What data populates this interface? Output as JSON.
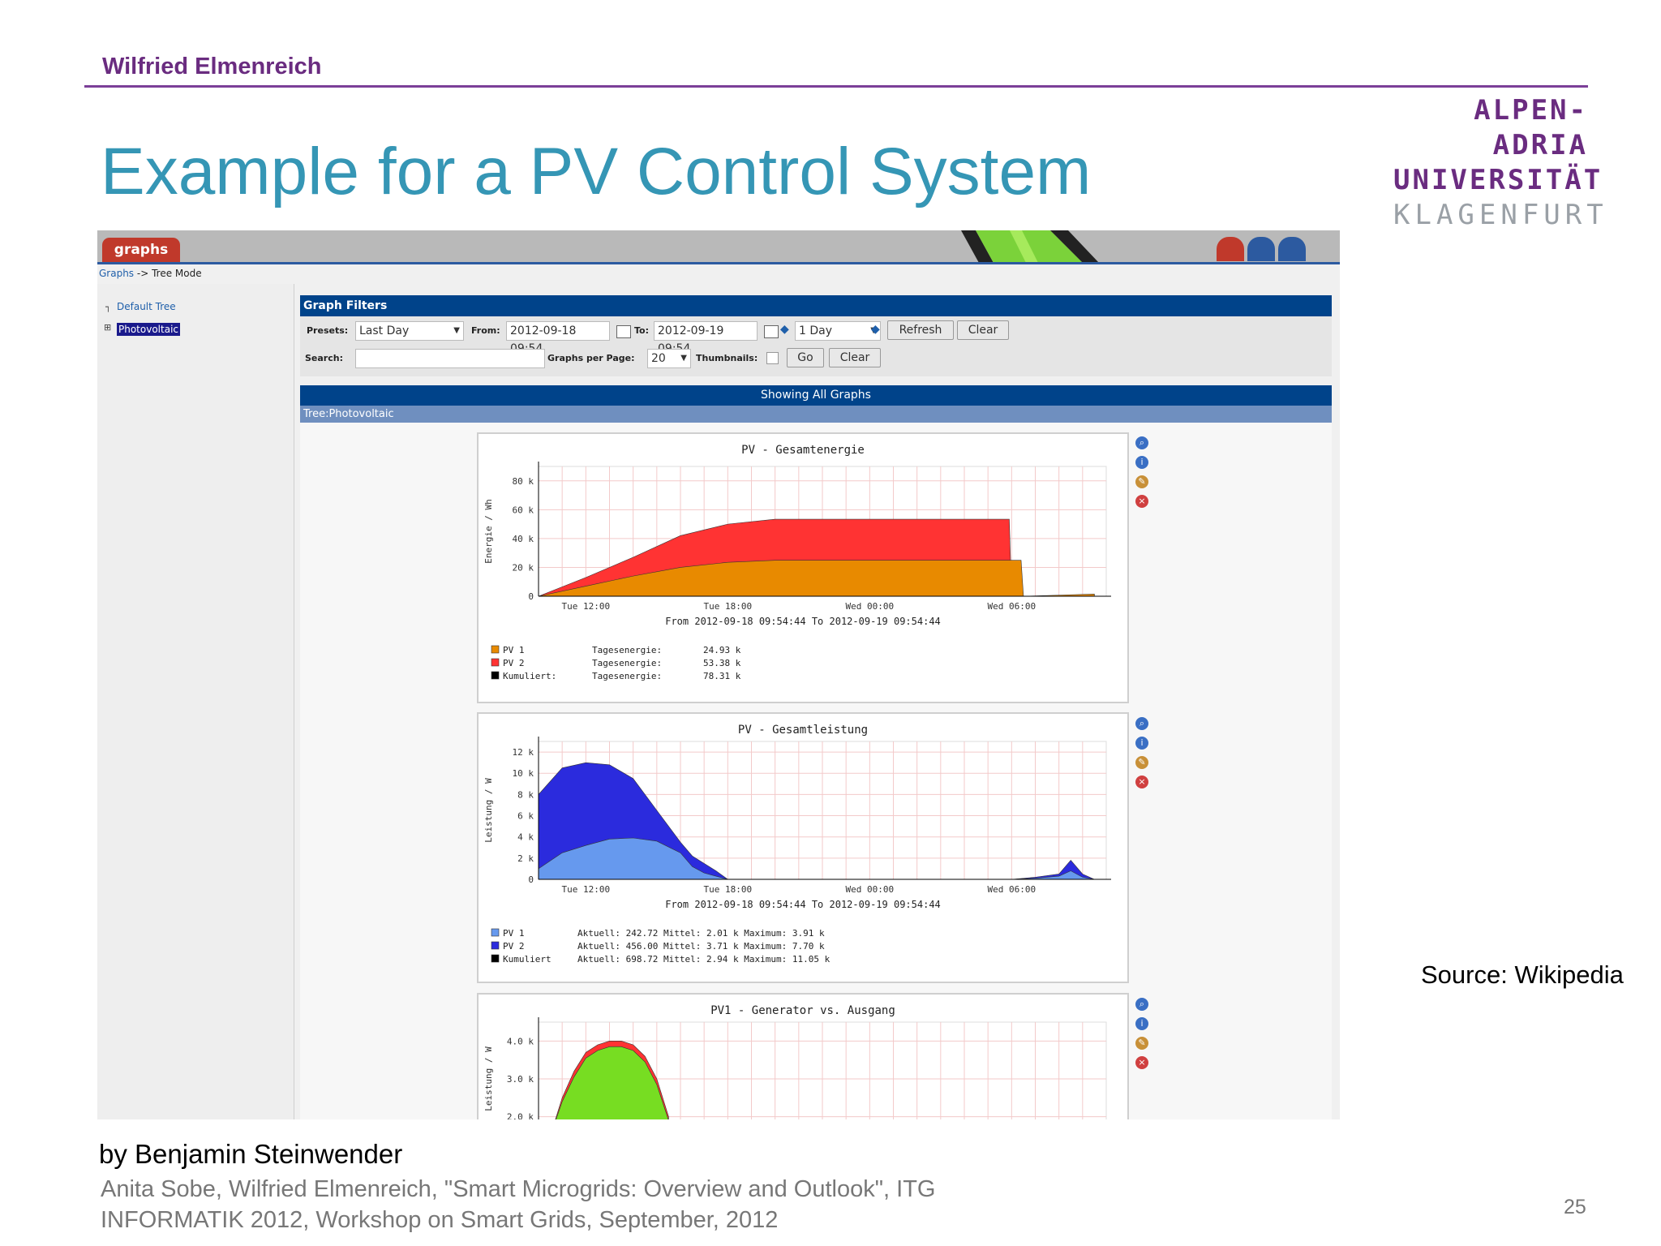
{
  "slide": {
    "author": "Wilfried Elmenreich",
    "title": "Example for a PV Control System",
    "logo": [
      "ALPEN-ADRIA",
      "UNIVERSITÄT",
      "KLAGENFURT"
    ],
    "source": "Source: Wikipedia",
    "byline": "by Benjamin Steinwender",
    "citation_line1": "Anita Sobe, Wilfried Elmenreich, \"Smart Microgrids: Overview and Outlook\", ITG",
    "citation_line2": "INFORMATIK 2012, Workshop on Smart Grids, September, 2012",
    "page_number": "25"
  },
  "app": {
    "tab_label": "graphs",
    "breadcrumb_link": "Graphs",
    "breadcrumb_rest": "-> Tree Mode",
    "tree": {
      "default": "Default Tree",
      "selected": "Photovoltaic"
    },
    "filters": {
      "header": "Graph Filters",
      "presets_label": "Presets:",
      "presets_value": "Last Day",
      "from_label": "From:",
      "from_value": "2012-09-18 09:54",
      "to_label": "To:",
      "to_value": "2012-09-19 09:54",
      "span_value": "1 Day",
      "refresh": "Refresh",
      "clear": "Clear",
      "search_label": "Search:",
      "search_value": "",
      "per_page_label": "Graphs per Page:",
      "per_page_value": "20",
      "thumbnails_label": "Thumbnails:",
      "go": "Go",
      "clear2": "Clear"
    },
    "showing": "Showing All Graphs",
    "tree_bar": "Tree:Photovoltaic",
    "action_icons": [
      "zoom-icon",
      "info-icon",
      "edit-icon",
      "delete-icon"
    ]
  },
  "chart_data": [
    {
      "type": "area",
      "title": "PV - Gesamtenergie",
      "ylabel": "Energie / Wh",
      "ylim": [
        0,
        90000
      ],
      "yticks": [
        "0",
        "20 k",
        "40 k",
        "60 k",
        "80 k"
      ],
      "xticks": [
        "Tue 12:00",
        "Tue 18:00",
        "Wed 00:00",
        "Wed 06:00"
      ],
      "x_hours": [
        0,
        2,
        4,
        6,
        8,
        10,
        12,
        14,
        16,
        18,
        19.9,
        20,
        20.4,
        20.5,
        23.5
      ],
      "period": "From 2012-09-18 09:54:44 To 2012-09-19 09:54:44",
      "colors": {
        "PV 1": "#e88a00",
        "PV 2": "#ff3333"
      },
      "series": [
        {
          "name": "PV 1",
          "values": [
            0,
            7000,
            14000,
            20000,
            23500,
            24930,
            24930,
            24930,
            24930,
            24930,
            24930,
            24930,
            24930,
            0,
            1500
          ]
        },
        {
          "name": "PV 2",
          "values": [
            0,
            13000,
            27000,
            42000,
            50000,
            53380,
            53380,
            53380,
            53380,
            53380,
            53380,
            0,
            0,
            0,
            0
          ]
        }
      ],
      "legend": [
        {
          "name": "PV 1",
          "stat": "Tagesenergie:",
          "value": "24.93 k",
          "color": "#e88a00"
        },
        {
          "name": "PV 2",
          "stat": "Tagesenergie:",
          "value": "53.38 k",
          "color": "#ff3333"
        },
        {
          "name": "Kumuliert:",
          "stat": "Tagesenergie:",
          "value": "78.31 k",
          "color": "#000000"
        }
      ]
    },
    {
      "type": "area",
      "title": "PV - Gesamtleistung",
      "ylabel": "Leistung / W",
      "ylim": [
        0,
        13000
      ],
      "yticks": [
        "0",
        "2 k",
        "4 k",
        "6 k",
        "8 k",
        "10 k",
        "12 k"
      ],
      "xticks": [
        "Tue 12:00",
        "Tue 18:00",
        "Wed 00:00",
        "Wed 06:00"
      ],
      "x_hours": [
        0,
        1,
        2,
        3,
        4,
        5,
        6,
        6.5,
        7,
        7.5,
        8,
        9,
        10,
        20,
        21,
        22,
        22.5,
        23,
        23.5
      ],
      "period": "From 2012-09-18 09:54:44 To 2012-09-19 09:54:44",
      "colors": {
        "PV 1": "#6699ee",
        "PV 2": "#2b2bdd"
      },
      "series": [
        {
          "name": "PV 1",
          "values": [
            1000,
            2500,
            3200,
            3800,
            3900,
            3600,
            2500,
            1200,
            600,
            300,
            0,
            0,
            0,
            0,
            100,
            300,
            800,
            200,
            0
          ]
        },
        {
          "name": "PV 2",
          "values": [
            8000,
            10500,
            11000,
            10800,
            9500,
            6500,
            3500,
            2200,
            1500,
            800,
            0,
            0,
            0,
            0,
            200,
            500,
            1800,
            500,
            0
          ]
        }
      ],
      "legend": [
        {
          "name": "PV 1",
          "stats": "Aktuell:  242.72   Mittel:   2.01 k  Maximum:   3.91 k",
          "color": "#6699ee"
        },
        {
          "name": "PV 2",
          "stats": "Aktuell:  456.00   Mittel:   3.71 k  Maximum:   7.70 k",
          "color": "#2b2bdd"
        },
        {
          "name": "Kumuliert",
          "stats": "Aktuell:  698.72   Mittel:   2.94 k  Maximum:  11.05 k",
          "color": "#000000"
        }
      ]
    },
    {
      "type": "area",
      "title": "PV1 - Generator vs. Ausgang",
      "ylabel": "Leistung / W",
      "ylim": [
        1500,
        4500
      ],
      "yticks": [
        "2.0 k",
        "3.0 k",
        "4.0 k"
      ],
      "x_hours": [
        0.5,
        1,
        1.5,
        2,
        2.5,
        3,
        3.5,
        4,
        4.5,
        5,
        5.5
      ],
      "series": [
        {
          "name": "Generator",
          "values": [
            1500,
            2500,
            3200,
            3700,
            3900,
            4000,
            4000,
            3900,
            3600,
            3000,
            2000
          ]
        },
        {
          "name": "Ausgang",
          "values": [
            1500,
            2400,
            3050,
            3550,
            3750,
            3850,
            3850,
            3750,
            3450,
            2850,
            1900
          ]
        }
      ],
      "colors": {
        "Generator": "#ff3333",
        "Ausgang": "#77dd22"
      }
    }
  ]
}
